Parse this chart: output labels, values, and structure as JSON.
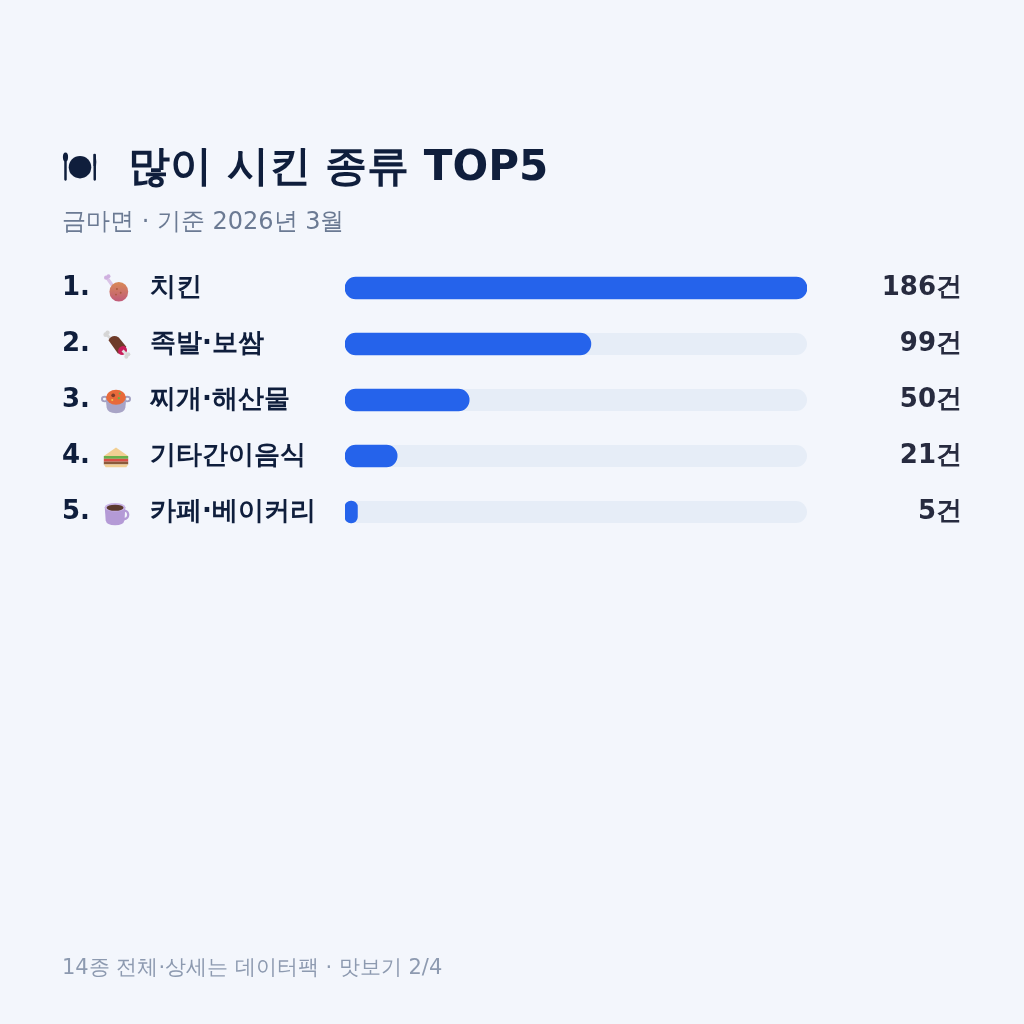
{
  "chart_data": {
    "type": "bar",
    "orientation": "horizontal",
    "title": "많이 시킨 종류 TOP5",
    "subtitle": "금마면 · 기준 2026년 3월",
    "categories": [
      "1. 치킨",
      "2. 족발·보쌈",
      "3. 찌개·해산물",
      "4. 기타간이음식",
      "5. 카페·베이커리"
    ],
    "values": [
      186,
      99,
      50,
      21,
      5
    ],
    "value_labels": [
      "186건",
      "99건",
      "50건",
      "21건",
      "5건"
    ],
    "color": "#2563eb",
    "xlim": [
      0,
      186
    ],
    "tick_labels": "y",
    "grid": false,
    "legend": false,
    "bands": [
      {
        "axis": "x",
        "from": 0,
        "to": 186,
        "color": "#e6edf7"
      }
    ],
    "annotations": [
      "14종 전체·상세는 데이터팩 · 맛보기 2/4"
    ]
  }
}
